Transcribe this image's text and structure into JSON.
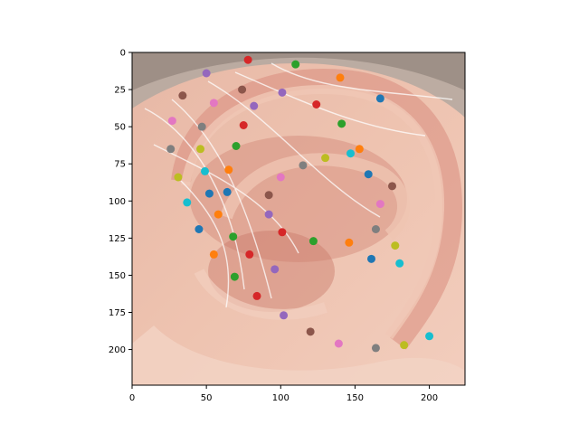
{
  "chart_data": {
    "type": "scatter",
    "title": "",
    "xlabel": "",
    "ylabel": "",
    "xlim": [
      0,
      224
    ],
    "ylim": [
      224,
      0
    ],
    "y_inverted": true,
    "grid": false,
    "background": "ear photograph",
    "x_ticks": [
      0,
      50,
      100,
      150,
      200
    ],
    "y_ticks": [
      0,
      25,
      50,
      75,
      100,
      125,
      150,
      175,
      200
    ],
    "palette": [
      "#1f77b4",
      "#ff7f0e",
      "#2ca02c",
      "#d62728",
      "#9467bd",
      "#8c564b",
      "#e377c2",
      "#7f7f7f",
      "#bcbd22",
      "#17becf"
    ],
    "points": [
      {
        "x": 78,
        "y": 5,
        "color": "#d62728"
      },
      {
        "x": 110,
        "y": 8,
        "color": "#2ca02c"
      },
      {
        "x": 50,
        "y": 14,
        "color": "#9467bd"
      },
      {
        "x": 140,
        "y": 17,
        "color": "#ff7f0e"
      },
      {
        "x": 34,
        "y": 29,
        "color": "#8c564b"
      },
      {
        "x": 74,
        "y": 25,
        "color": "#8c564b"
      },
      {
        "x": 101,
        "y": 27,
        "color": "#9467bd"
      },
      {
        "x": 167,
        "y": 31,
        "color": "#1f77b4"
      },
      {
        "x": 55,
        "y": 34,
        "color": "#e377c2"
      },
      {
        "x": 82,
        "y": 36,
        "color": "#9467bd"
      },
      {
        "x": 124,
        "y": 35,
        "color": "#d62728"
      },
      {
        "x": 27,
        "y": 46,
        "color": "#e377c2"
      },
      {
        "x": 47,
        "y": 50,
        "color": "#7f7f7f"
      },
      {
        "x": 75,
        "y": 49,
        "color": "#d62728"
      },
      {
        "x": 141,
        "y": 48,
        "color": "#2ca02c"
      },
      {
        "x": 26,
        "y": 65,
        "color": "#7f7f7f"
      },
      {
        "x": 46,
        "y": 65,
        "color": "#bcbd22"
      },
      {
        "x": 70,
        "y": 63,
        "color": "#2ca02c"
      },
      {
        "x": 153,
        "y": 65,
        "color": "#ff7f0e"
      },
      {
        "x": 147,
        "y": 68,
        "color": "#17becf"
      },
      {
        "x": 130,
        "y": 71,
        "color": "#bcbd22"
      },
      {
        "x": 115,
        "y": 76,
        "color": "#7f7f7f"
      },
      {
        "x": 49,
        "y": 80,
        "color": "#17becf"
      },
      {
        "x": 65,
        "y": 79,
        "color": "#ff7f0e"
      },
      {
        "x": 31,
        "y": 84,
        "color": "#bcbd22"
      },
      {
        "x": 159,
        "y": 82,
        "color": "#1f77b4"
      },
      {
        "x": 100,
        "y": 84,
        "color": "#e377c2"
      },
      {
        "x": 175,
        "y": 90,
        "color": "#8c564b"
      },
      {
        "x": 52,
        "y": 95,
        "color": "#1f77b4"
      },
      {
        "x": 64,
        "y": 94,
        "color": "#1f77b4"
      },
      {
        "x": 92,
        "y": 96,
        "color": "#8c564b"
      },
      {
        "x": 37,
        "y": 101,
        "color": "#17becf"
      },
      {
        "x": 167,
        "y": 102,
        "color": "#e377c2"
      },
      {
        "x": 58,
        "y": 109,
        "color": "#ff7f0e"
      },
      {
        "x": 92,
        "y": 109,
        "color": "#9467bd"
      },
      {
        "x": 45,
        "y": 119,
        "color": "#1f77b4"
      },
      {
        "x": 101,
        "y": 121,
        "color": "#d62728"
      },
      {
        "x": 164,
        "y": 119,
        "color": "#7f7f7f"
      },
      {
        "x": 68,
        "y": 124,
        "color": "#2ca02c"
      },
      {
        "x": 122,
        "y": 127,
        "color": "#2ca02c"
      },
      {
        "x": 146,
        "y": 128,
        "color": "#ff7f0e"
      },
      {
        "x": 177,
        "y": 130,
        "color": "#bcbd22"
      },
      {
        "x": 55,
        "y": 136,
        "color": "#ff7f0e"
      },
      {
        "x": 79,
        "y": 136,
        "color": "#d62728"
      },
      {
        "x": 161,
        "y": 139,
        "color": "#1f77b4"
      },
      {
        "x": 180,
        "y": 142,
        "color": "#17becf"
      },
      {
        "x": 96,
        "y": 146,
        "color": "#9467bd"
      },
      {
        "x": 69,
        "y": 151,
        "color": "#2ca02c"
      },
      {
        "x": 84,
        "y": 164,
        "color": "#d62728"
      },
      {
        "x": 102,
        "y": 177,
        "color": "#9467bd"
      },
      {
        "x": 120,
        "y": 188,
        "color": "#8c564b"
      },
      {
        "x": 200,
        "y": 191,
        "color": "#17becf"
      },
      {
        "x": 139,
        "y": 196,
        "color": "#e377c2"
      },
      {
        "x": 164,
        "y": 199,
        "color": "#7f7f7f"
      },
      {
        "x": 183,
        "y": 197,
        "color": "#bcbd22"
      }
    ]
  }
}
